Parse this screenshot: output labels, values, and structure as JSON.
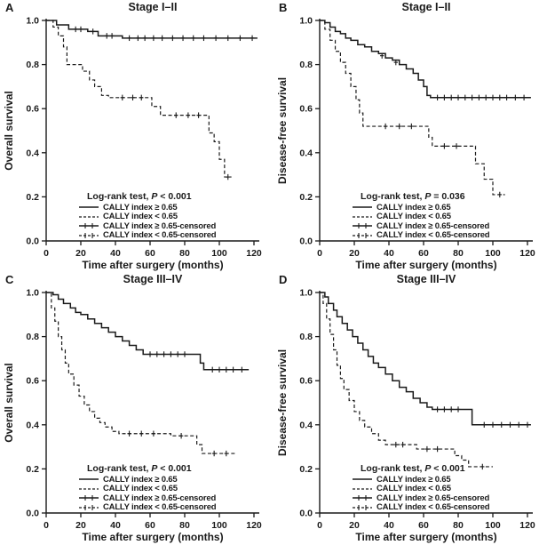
{
  "figure": {
    "background": "#ffffff",
    "line_color": "#1a1a1a"
  },
  "chart_data": [
    {
      "type": "line",
      "panel": "A",
      "title": "Stage I–II",
      "ylabel": "Overall survival",
      "xlabel": "Time after surgery (months)",
      "xlim": [
        0,
        125
      ],
      "ylim": [
        0,
        1.0
      ],
      "x_tick_labels": [
        "0",
        "20",
        "40",
        "60",
        "80",
        "100",
        "120"
      ],
      "y_tick_labels": [
        "0.0",
        "0.2",
        "0.4",
        "0.6",
        "0.8",
        "1.0"
      ],
      "logrank": {
        "prefix": "Log-rank test, ",
        "p": "P",
        "suffix": " < 0.001"
      },
      "legend": [
        "CALLY index ≥ 0.65",
        "CALLY index < 0.65",
        "CALLY index ≥ 0.65-censored",
        "CALLY index < 0.65-censored"
      ],
      "series": [
        {
          "name": "CALLY index ≥ 0.65",
          "style": "solid",
          "steps": [
            [
              0,
              1.0
            ],
            [
              6,
              0.98
            ],
            [
              13,
              0.96
            ],
            [
              24,
              0.95
            ],
            [
              30,
              0.93
            ],
            [
              44,
              0.92
            ],
            [
              122,
              0.92
            ]
          ],
          "censors": [
            [
              17,
              0.96
            ],
            [
              20,
              0.96
            ],
            [
              27,
              0.95
            ],
            [
              35,
              0.93
            ],
            [
              38,
              0.93
            ],
            [
              48,
              0.92
            ],
            [
              53,
              0.92
            ],
            [
              57,
              0.92
            ],
            [
              62,
              0.92
            ],
            [
              67,
              0.92
            ],
            [
              73,
              0.92
            ],
            [
              79,
              0.92
            ],
            [
              85,
              0.92
            ],
            [
              91,
              0.92
            ],
            [
              98,
              0.92
            ],
            [
              105,
              0.92
            ],
            [
              112,
              0.92
            ],
            [
              119,
              0.92
            ]
          ]
        },
        {
          "name": "CALLY index < 0.65",
          "style": "dashed",
          "steps": [
            [
              0,
              1.0
            ],
            [
              4,
              0.97
            ],
            [
              7,
              0.93
            ],
            [
              10,
              0.88
            ],
            [
              12,
              0.8
            ],
            [
              21,
              0.77
            ],
            [
              25,
              0.73
            ],
            [
              28,
              0.7
            ],
            [
              32,
              0.66
            ],
            [
              36,
              0.65
            ],
            [
              61,
              0.61
            ],
            [
              66,
              0.57
            ],
            [
              94,
              0.49
            ],
            [
              97,
              0.45
            ],
            [
              100,
              0.37
            ],
            [
              103,
              0.29
            ],
            [
              107,
              0.29
            ]
          ],
          "censors": [
            [
              44,
              0.65
            ],
            [
              50,
              0.65
            ],
            [
              55,
              0.65
            ],
            [
              75,
              0.57
            ],
            [
              82,
              0.57
            ],
            [
              88,
              0.57
            ],
            [
              105,
              0.29
            ]
          ]
        }
      ]
    },
    {
      "type": "line",
      "panel": "B",
      "title": "Stage I–II",
      "ylabel": "Disease-free survival",
      "xlabel": "Time after surgery (months)",
      "xlim": [
        0,
        125
      ],
      "ylim": [
        0,
        1.0
      ],
      "x_tick_labels": [
        "0",
        "20",
        "40",
        "60",
        "80",
        "100",
        "120"
      ],
      "y_tick_labels": [
        "0.0",
        "0.2",
        "0.4",
        "0.6",
        "0.8",
        "1.0"
      ],
      "logrank": {
        "prefix": "Log-rank test, ",
        "p": "P",
        "suffix": " = 0.036"
      },
      "legend": [
        "CALLY index ≥ 0.65",
        "CALLY index < 0.65",
        "CALLY index ≥ 0.65-censored",
        "CALLY index < 0.65-censored"
      ],
      "series": [
        {
          "name": "CALLY index ≥ 0.65",
          "style": "solid",
          "steps": [
            [
              0,
              1.0
            ],
            [
              3,
              0.99
            ],
            [
              6,
              0.97
            ],
            [
              9,
              0.95
            ],
            [
              12,
              0.94
            ],
            [
              15,
              0.92
            ],
            [
              18,
              0.91
            ],
            [
              22,
              0.89
            ],
            [
              26,
              0.88
            ],
            [
              30,
              0.86
            ],
            [
              34,
              0.85
            ],
            [
              38,
              0.83
            ],
            [
              42,
              0.82
            ],
            [
              46,
              0.8
            ],
            [
              50,
              0.78
            ],
            [
              54,
              0.76
            ],
            [
              57,
              0.73
            ],
            [
              60,
              0.7
            ],
            [
              62,
              0.66
            ],
            [
              64,
              0.65
            ],
            [
              122,
              0.65
            ]
          ],
          "censors": [
            [
              36,
              0.84
            ],
            [
              44,
              0.81
            ],
            [
              68,
              0.65
            ],
            [
              72,
              0.65
            ],
            [
              76,
              0.65
            ],
            [
              80,
              0.65
            ],
            [
              84,
              0.65
            ],
            [
              88,
              0.65
            ],
            [
              92,
              0.65
            ],
            [
              96,
              0.65
            ],
            [
              100,
              0.65
            ],
            [
              104,
              0.65
            ],
            [
              108,
              0.65
            ],
            [
              113,
              0.65
            ],
            [
              118,
              0.65
            ]
          ]
        },
        {
          "name": "CALLY index < 0.65",
          "style": "dashed",
          "steps": [
            [
              0,
              1.0
            ],
            [
              3,
              0.96
            ],
            [
              6,
              0.91
            ],
            [
              9,
              0.86
            ],
            [
              12,
              0.81
            ],
            [
              15,
              0.76
            ],
            [
              18,
              0.7
            ],
            [
              21,
              0.64
            ],
            [
              23,
              0.58
            ],
            [
              25,
              0.52
            ],
            [
              61,
              0.52
            ],
            [
              63,
              0.47
            ],
            [
              65,
              0.43
            ],
            [
              87,
              0.43
            ],
            [
              90,
              0.35
            ],
            [
              95,
              0.28
            ],
            [
              100,
              0.21
            ],
            [
              107,
              0.21
            ]
          ],
          "censors": [
            [
              38,
              0.52
            ],
            [
              46,
              0.52
            ],
            [
              53,
              0.52
            ],
            [
              72,
              0.43
            ],
            [
              79,
              0.43
            ],
            [
              104,
              0.21
            ]
          ]
        }
      ]
    },
    {
      "type": "line",
      "panel": "C",
      "title": "Stage III–IV",
      "ylabel": "Overall survival",
      "xlabel": "Time after surgery (months)",
      "xlim": [
        0,
        125
      ],
      "ylim": [
        0,
        1.0
      ],
      "x_tick_labels": [
        "0",
        "20",
        "40",
        "60",
        "80",
        "100",
        "120"
      ],
      "y_tick_labels": [
        "0.0",
        "0.2",
        "0.4",
        "0.6",
        "0.8",
        "1.0"
      ],
      "logrank": {
        "prefix": "Log-rank test, ",
        "p": "P",
        "suffix": " < 0.001"
      },
      "legend": [
        "CALLY index ≥ 0.65",
        "CALLY index < 0.65",
        "CALLY index ≥ 0.65-censored",
        "CALLY index < 0.65-censored"
      ],
      "series": [
        {
          "name": "CALLY index ≥ 0.65",
          "style": "solid",
          "steps": [
            [
              0,
              1.0
            ],
            [
              4,
              0.99
            ],
            [
              7,
              0.97
            ],
            [
              10,
              0.95
            ],
            [
              14,
              0.93
            ],
            [
              17,
              0.91
            ],
            [
              20,
              0.9
            ],
            [
              24,
              0.88
            ],
            [
              28,
              0.86
            ],
            [
              32,
              0.84
            ],
            [
              36,
              0.82
            ],
            [
              40,
              0.8
            ],
            [
              44,
              0.78
            ],
            [
              48,
              0.76
            ],
            [
              52,
              0.74
            ],
            [
              56,
              0.72
            ],
            [
              86,
              0.72
            ],
            [
              89,
              0.68
            ],
            [
              91,
              0.65
            ],
            [
              117,
              0.65
            ]
          ],
          "censors": [
            [
              60,
              0.72
            ],
            [
              64,
              0.72
            ],
            [
              68,
              0.72
            ],
            [
              72,
              0.72
            ],
            [
              76,
              0.72
            ],
            [
              80,
              0.72
            ],
            [
              96,
              0.65
            ],
            [
              100,
              0.65
            ],
            [
              104,
              0.65
            ],
            [
              108,
              0.65
            ],
            [
              113,
              0.65
            ]
          ]
        },
        {
          "name": "CALLY index < 0.65",
          "style": "dashed",
          "steps": [
            [
              0,
              1.0
            ],
            [
              3,
              0.93
            ],
            [
              5,
              0.87
            ],
            [
              7,
              0.8
            ],
            [
              9,
              0.74
            ],
            [
              11,
              0.68
            ],
            [
              13,
              0.63
            ],
            [
              16,
              0.58
            ],
            [
              19,
              0.53
            ],
            [
              22,
              0.49
            ],
            [
              25,
              0.46
            ],
            [
              28,
              0.43
            ],
            [
              31,
              0.41
            ],
            [
              34,
              0.39
            ],
            [
              38,
              0.37
            ],
            [
              42,
              0.36
            ],
            [
              68,
              0.36
            ],
            [
              72,
              0.35
            ],
            [
              84,
              0.35
            ],
            [
              87,
              0.31
            ],
            [
              90,
              0.27
            ],
            [
              110,
              0.27
            ]
          ],
          "censors": [
            [
              48,
              0.36
            ],
            [
              55,
              0.36
            ],
            [
              62,
              0.36
            ],
            [
              78,
              0.35
            ],
            [
              97,
              0.27
            ],
            [
              104,
              0.27
            ]
          ]
        }
      ]
    },
    {
      "type": "line",
      "panel": "D",
      "title": "Stage III–IV",
      "ylabel": "Disease-free survival",
      "xlabel": "Time after surgery (months)",
      "xlim": [
        0,
        125
      ],
      "ylim": [
        0,
        1.0
      ],
      "x_tick_labels": [
        "0",
        "20",
        "40",
        "60",
        "80",
        "100",
        "120"
      ],
      "y_tick_labels": [
        "0.0",
        "0.2",
        "0.4",
        "0.6",
        "0.8",
        "1.0"
      ],
      "logrank": {
        "prefix": "Log-rank test, ",
        "p": "P",
        "suffix": " < 0.001"
      },
      "legend": [
        "CALLY index ≥ 0.65",
        "CALLY index < 0.65",
        "CALLY index ≥ 0.65-censored",
        "CALLY index < 0.65-censored"
      ],
      "series": [
        {
          "name": "CALLY index ≥ 0.65",
          "style": "solid",
          "steps": [
            [
              0,
              1.0
            ],
            [
              3,
              0.98
            ],
            [
              5,
              0.95
            ],
            [
              8,
              0.92
            ],
            [
              10,
              0.89
            ],
            [
              13,
              0.86
            ],
            [
              16,
              0.83
            ],
            [
              19,
              0.8
            ],
            [
              22,
              0.77
            ],
            [
              25,
              0.74
            ],
            [
              28,
              0.71
            ],
            [
              31,
              0.68
            ],
            [
              34,
              0.66
            ],
            [
              38,
              0.63
            ],
            [
              42,
              0.6
            ],
            [
              46,
              0.57
            ],
            [
              50,
              0.55
            ],
            [
              54,
              0.52
            ],
            [
              58,
              0.5
            ],
            [
              62,
              0.48
            ],
            [
              65,
              0.47
            ],
            [
              85,
              0.47
            ],
            [
              88,
              0.4
            ],
            [
              122,
              0.4
            ]
          ],
          "censors": [
            [
              68,
              0.47
            ],
            [
              72,
              0.47
            ],
            [
              76,
              0.47
            ],
            [
              80,
              0.47
            ],
            [
              95,
              0.4
            ],
            [
              100,
              0.4
            ],
            [
              105,
              0.4
            ],
            [
              110,
              0.4
            ],
            [
              115,
              0.4
            ],
            [
              120,
              0.4
            ]
          ]
        },
        {
          "name": "CALLY index < 0.65",
          "style": "dashed",
          "steps": [
            [
              0,
              1.0
            ],
            [
              2,
              0.95
            ],
            [
              4,
              0.88
            ],
            [
              6,
              0.81
            ],
            [
              8,
              0.74
            ],
            [
              10,
              0.67
            ],
            [
              12,
              0.61
            ],
            [
              14,
              0.56
            ],
            [
              17,
              0.51
            ],
            [
              20,
              0.46
            ],
            [
              23,
              0.42
            ],
            [
              26,
              0.39
            ],
            [
              30,
              0.36
            ],
            [
              34,
              0.33
            ],
            [
              38,
              0.31
            ],
            [
              52,
              0.31
            ],
            [
              56,
              0.29
            ],
            [
              74,
              0.29
            ],
            [
              78,
              0.26
            ],
            [
              82,
              0.24
            ],
            [
              86,
              0.21
            ],
            [
              100,
              0.21
            ]
          ],
          "censors": [
            [
              44,
              0.31
            ],
            [
              48,
              0.31
            ],
            [
              62,
              0.29
            ],
            [
              68,
              0.29
            ],
            [
              94,
              0.21
            ]
          ]
        }
      ]
    }
  ]
}
